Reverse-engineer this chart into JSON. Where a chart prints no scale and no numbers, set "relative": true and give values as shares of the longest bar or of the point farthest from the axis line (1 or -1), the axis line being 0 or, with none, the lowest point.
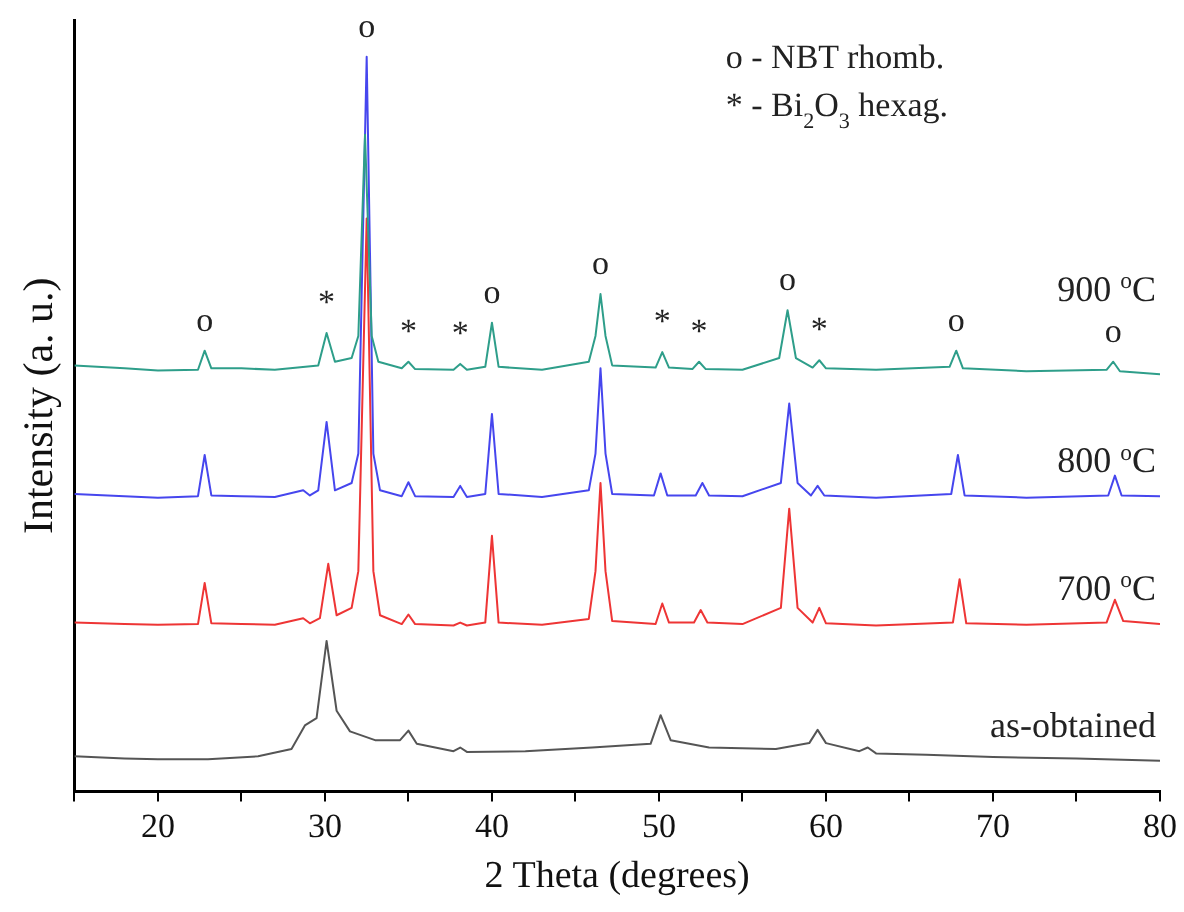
{
  "chart_data": {
    "type": "line",
    "relative": true,
    "xlabel": "2 Theta (degrees)",
    "ylabel": "Intensity (a. u.)",
    "xlim": [
      15,
      80
    ],
    "xticks": [
      {
        "value": 15,
        "label": null
      },
      20,
      {
        "value": 25,
        "label": null
      },
      30,
      {
        "value": 35,
        "label": null
      },
      40,
      {
        "value": 45,
        "label": null
      },
      50,
      {
        "value": 55,
        "label": null
      },
      60,
      {
        "value": 65,
        "label": null
      },
      70,
      {
        "value": 75,
        "label": null
      },
      80
    ],
    "grid": false,
    "legend": false,
    "marker": "none",
    "line_style": "solid",
    "series": [
      {
        "name": "900 $^{o}$C",
        "color": "#2e9e8a",
        "x": [
          15,
          18,
          20,
          22.4,
          22.8,
          23.2,
          25,
          27,
          29.6,
          30.1,
          30.6,
          31.6,
          32,
          32.4,
          32.8,
          33.2,
          34.6,
          35,
          35.4,
          37.7,
          38.1,
          38.5,
          39.6,
          40,
          40.4,
          43,
          45.8,
          46.2,
          46.5,
          46.8,
          47.2,
          49.8,
          50.2,
          50.6,
          52,
          52.4,
          52.8,
          55,
          57.2,
          57.7,
          58.2,
          59.2,
          59.6,
          60,
          63,
          67.4,
          67.8,
          68.2,
          72,
          76.8,
          77.2,
          77.6,
          80
        ],
        "values": [
          0.58,
          0.576,
          0.573,
          0.574,
          0.6,
          0.576,
          0.576,
          0.574,
          0.58,
          0.624,
          0.585,
          0.59,
          0.62,
          0.894,
          0.62,
          0.585,
          0.576,
          0.585,
          0.575,
          0.574,
          0.582,
          0.574,
          0.578,
          0.638,
          0.578,
          0.574,
          0.585,
          0.62,
          0.677,
          0.62,
          0.58,
          0.577,
          0.598,
          0.577,
          0.575,
          0.585,
          0.575,
          0.574,
          0.59,
          0.655,
          0.59,
          0.577,
          0.587,
          0.576,
          0.574,
          0.578,
          0.6,
          0.576,
          0.572,
          0.574,
          0.585,
          0.572,
          0.568
        ]
      },
      {
        "name": "800 $^{o}$C",
        "color": "#4646ee",
        "x": [
          15,
          18,
          20,
          22.4,
          22.8,
          23.2,
          25,
          27,
          28.7,
          29.1,
          29.6,
          30.1,
          30.6,
          31.6,
          32,
          32.5,
          32.9,
          33.3,
          34.6,
          35,
          35.4,
          37.7,
          38.1,
          38.5,
          39.6,
          40,
          40.4,
          43,
          45.8,
          46.2,
          46.5,
          46.8,
          47.2,
          49.7,
          50.1,
          50.5,
          52.2,
          52.6,
          53,
          55,
          57.3,
          57.8,
          58.3,
          59.1,
          59.5,
          59.9,
          63,
          67.5,
          67.9,
          68.3,
          72,
          76.9,
          77.3,
          77.7,
          80
        ],
        "values": [
          0.405,
          0.402,
          0.4,
          0.402,
          0.458,
          0.403,
          0.402,
          0.401,
          0.41,
          0.403,
          0.41,
          0.503,
          0.41,
          0.42,
          0.46,
          1.0,
          0.46,
          0.41,
          0.402,
          0.421,
          0.402,
          0.401,
          0.416,
          0.401,
          0.405,
          0.514,
          0.405,
          0.401,
          0.41,
          0.46,
          0.576,
          0.46,
          0.405,
          0.403,
          0.433,
          0.403,
          0.403,
          0.42,
          0.403,
          0.402,
          0.42,
          0.528,
          0.42,
          0.403,
          0.416,
          0.403,
          0.4,
          0.405,
          0.458,
          0.403,
          0.4,
          0.403,
          0.43,
          0.403,
          0.402
        ]
      },
      {
        "name": "700 $^{o}$C",
        "color": "#ee3535",
        "x": [
          15,
          18,
          20,
          22.4,
          22.8,
          23.2,
          25,
          27,
          28.7,
          29.1,
          29.7,
          30.2,
          30.7,
          31.6,
          32,
          32.5,
          32.9,
          33.3,
          34.6,
          35,
          35.4,
          37.7,
          38.1,
          38.5,
          39.6,
          40,
          40.4,
          43,
          45.8,
          46.2,
          46.5,
          46.8,
          47.2,
          49.8,
          50.2,
          50.6,
          52.1,
          52.5,
          52.9,
          55,
          57.3,
          57.8,
          58.3,
          59.2,
          59.6,
          60,
          63,
          67.6,
          68,
          68.4,
          72,
          76.8,
          77.3,
          77.8,
          80
        ],
        "values": [
          0.23,
          0.228,
          0.227,
          0.228,
          0.284,
          0.229,
          0.228,
          0.227,
          0.236,
          0.229,
          0.236,
          0.31,
          0.24,
          0.25,
          0.3,
          0.78,
          0.3,
          0.24,
          0.228,
          0.241,
          0.228,
          0.226,
          0.23,
          0.226,
          0.23,
          0.348,
          0.23,
          0.227,
          0.235,
          0.3,
          0.42,
          0.3,
          0.232,
          0.228,
          0.256,
          0.23,
          0.23,
          0.247,
          0.23,
          0.228,
          0.25,
          0.385,
          0.25,
          0.23,
          0.25,
          0.229,
          0.226,
          0.23,
          0.289,
          0.229,
          0.227,
          0.23,
          0.261,
          0.232,
          0.228
        ]
      },
      {
        "name": "as-obtained",
        "color": "#555555",
        "x": [
          15,
          18,
          20,
          23,
          26,
          28,
          28.8,
          29.5,
          30.1,
          30.7,
          31.5,
          33,
          34.5,
          35,
          35.5,
          37.7,
          38.1,
          38.5,
          42,
          46,
          49.5,
          50.1,
          50.7,
          53,
          57,
          59,
          59.5,
          60,
          62,
          62.5,
          63,
          66,
          70,
          75,
          80
        ],
        "values": [
          0.048,
          0.045,
          0.044,
          0.044,
          0.048,
          0.058,
          0.09,
          0.1,
          0.205,
          0.11,
          0.082,
          0.07,
          0.07,
          0.083,
          0.065,
          0.055,
          0.06,
          0.054,
          0.055,
          0.06,
          0.065,
          0.104,
          0.07,
          0.06,
          0.058,
          0.066,
          0.084,
          0.066,
          0.055,
          0.06,
          0.052,
          0.05,
          0.047,
          0.045,
          0.042
        ]
      }
    ],
    "annotations": [
      "o - NBT rhomb.",
      "* - Bi$_{2}$O$_{3}$ hexag.",
      {
        "text": "o",
        "x": 22.8,
        "y": 0.6
      },
      {
        "text": "*",
        "x": 30.1,
        "y": 0.624
      },
      {
        "text": "o",
        "x": 32.5,
        "y": 1.0
      },
      {
        "text": "*",
        "x": 35,
        "y": 0.585
      },
      {
        "text": "*",
        "x": 38.1,
        "y": 0.582
      },
      {
        "text": "o",
        "x": 40,
        "y": 0.638
      },
      {
        "text": "o",
        "x": 46.5,
        "y": 0.677
      },
      {
        "text": "*",
        "x": 50.2,
        "y": 0.598
      },
      {
        "text": "*",
        "x": 52.4,
        "y": 0.585
      },
      {
        "text": "o",
        "x": 57.7,
        "y": 0.655
      },
      {
        "text": "*",
        "x": 59.6,
        "y": 0.587
      },
      {
        "text": "o",
        "x": 67.8,
        "y": 0.6
      },
      {
        "text": "o",
        "x": 77.2,
        "y": 0.585
      }
    ]
  }
}
